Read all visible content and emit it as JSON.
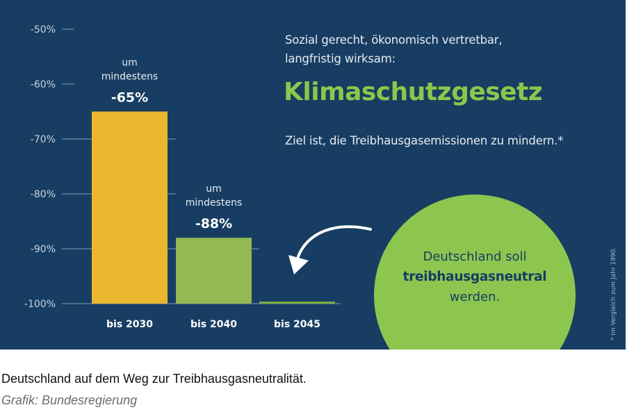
{
  "infographic": {
    "intro_line1": "Sozial gerecht, ökonomisch vertretbar,",
    "intro_line2": "langfristig wirksam:",
    "headline": "Klimaschutzgesetz",
    "goal": "Ziel ist, die Treibhausgasemissionen zu mindern.*",
    "circle": {
      "line1": "Deutschland soll",
      "line2": "treibhausgasneutral",
      "line3": "werden."
    },
    "footnote": "* Im Vergleich zum Jahr 1990.",
    "arrow_icon": "curved-arrow-icon",
    "colors": {
      "background": "#173d63",
      "bar_2030": "#eab72e",
      "bar_2040": "#93b953",
      "bar_2045": "#7fae3d",
      "headline": "#8dc64c",
      "circle": "#8cc64f"
    }
  },
  "chart_data": {
    "type": "bar",
    "title": "Klimaschutzgesetz",
    "xlabel": "",
    "ylabel": "",
    "categories": [
      "bis 2030",
      "bis 2040",
      "bis 2045"
    ],
    "values": [
      -65,
      -88,
      -100
    ],
    "ylim": [
      -50,
      -100
    ],
    "yticks": [
      -50,
      -60,
      -70,
      -80,
      -90,
      -100
    ],
    "ytick_labels": [
      "-50%",
      "-60%",
      "-70%",
      "-80%",
      "-90%",
      "-100%"
    ],
    "grid": true,
    "annotations": [
      {
        "category": "bis 2030",
        "prefix_line1": "um",
        "prefix_line2": "mindestens",
        "value_label": "-65%"
      },
      {
        "category": "bis 2040",
        "prefix_line1": "um",
        "prefix_line2": "mindestens",
        "value_label": "-88%"
      }
    ],
    "legend": "none"
  },
  "caption": {
    "text": "Deutschland auf dem Weg zur Treibhausgasneutralität.",
    "credit": "Grafik: Bundesregierung"
  }
}
